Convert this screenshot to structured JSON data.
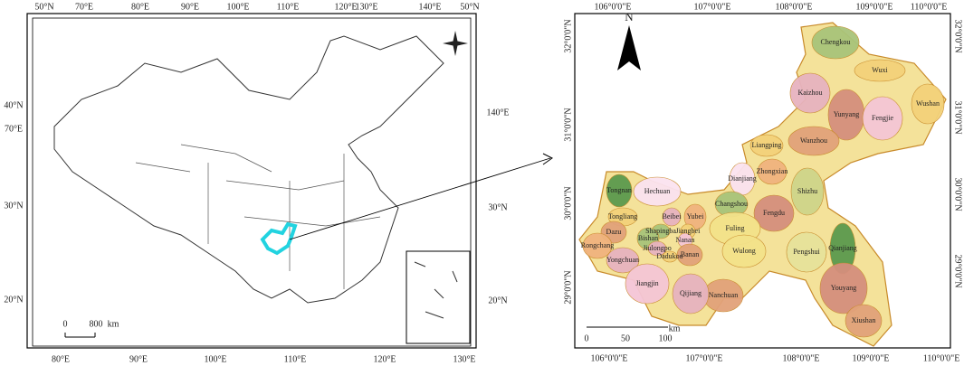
{
  "left_map": {
    "top_ticks": [
      "50°N",
      "70°E",
      "80°E",
      "90°E",
      "100°E",
      "110°E",
      "120°E",
      "130°E",
      "140°E",
      "50°N"
    ],
    "bottom_ticks": [
      "80°E",
      "90°E",
      "100°E",
      "110°E",
      "120°E",
      "130°E"
    ],
    "left_ticks": [
      "40°N",
      "70°E",
      "30°N",
      "20°N"
    ],
    "right_ticks": [
      "140°E",
      "30°N",
      "20°N"
    ],
    "scale": [
      "0",
      "800",
      "km"
    ]
  },
  "right_map": {
    "north": "N",
    "top_ticks": [
      "106°0'0\"E",
      "107°0'0\"E",
      "108°0'0\"E",
      "109°0'0\"E",
      "110°0'0\"E"
    ],
    "bottom_ticks": [
      "106°0'0\"E",
      "107°0'0\"E",
      "108°0'0\"E",
      "109°0'0\"E",
      "110°0'0\"E"
    ],
    "left_ticks": [
      "32°0'0\"N",
      "31°0'0\"N",
      "30°0'0\"N",
      "29°0'0\"N"
    ],
    "right_ticks": [
      "32°0'0\"N",
      "31°0'0\"N",
      "30°0'0\"N",
      "29°0'0\"N"
    ],
    "scale": [
      "0",
      "50",
      "100",
      "km"
    ],
    "districts": [
      {
        "label": "Chengkou",
        "color": "#a9c47a"
      },
      {
        "label": "Wuxi",
        "color": "#f3d27a"
      },
      {
        "label": "Kaizhou",
        "color": "#e7b3bf"
      },
      {
        "label": "Yunyang",
        "color": "#d58f7d"
      },
      {
        "label": "Wushan",
        "color": "#f3d27a"
      },
      {
        "label": "Fengjie",
        "color": "#f5c6d6"
      },
      {
        "label": "Liangping",
        "color": "#f3d27a"
      },
      {
        "label": "Wanzhou",
        "color": "#e2a27a"
      },
      {
        "label": "Zhongxian",
        "color": "#f0b37e"
      },
      {
        "label": "Dianjiang",
        "color": "#fbe3f0"
      },
      {
        "label": "Shizhu",
        "color": "#cfd58a"
      },
      {
        "label": "Tongnan",
        "color": "#5c9a4e"
      },
      {
        "label": "Hechuan",
        "color": "#fbe3f0"
      },
      {
        "label": "Changshou",
        "color": "#a9c47a"
      },
      {
        "label": "Fengdu",
        "color": "#d58f7d"
      },
      {
        "label": "Tongliang",
        "color": "#f3d27a"
      },
      {
        "label": "Beibei",
        "color": "#e7b3bf"
      },
      {
        "label": "Yubei",
        "color": "#f0b37e"
      },
      {
        "label": "Dazu",
        "color": "#e2a27a"
      },
      {
        "label": "Shapingba",
        "color": "#a9c47a"
      },
      {
        "label": "Jiangbei",
        "color": "#f3d27a"
      },
      {
        "label": "Bishan",
        "color": "#a9c47a"
      },
      {
        "label": "Nanan",
        "color": "#f5c6d6"
      },
      {
        "label": "Fuling",
        "color": "#f3e28a"
      },
      {
        "label": "Rongchang",
        "color": "#f0b37e"
      },
      {
        "label": "Jiulongpo",
        "color": "#e7b3bf"
      },
      {
        "label": "Dadukou",
        "color": "#f3d27a"
      },
      {
        "label": "Banan",
        "color": "#e2a27a"
      },
      {
        "label": "Wulong",
        "color": "#f3e28a"
      },
      {
        "label": "Pengshui",
        "color": "#e7e29a"
      },
      {
        "label": "Qianjiang",
        "color": "#5c9a4e"
      },
      {
        "label": "Yongchuan",
        "color": "#e7b3bf"
      },
      {
        "label": "Nanchuan",
        "color": "#e2a27a"
      },
      {
        "label": "Jiangjin",
        "color": "#f5c6d6"
      },
      {
        "label": "Qijiang",
        "color": "#e7b3bf"
      },
      {
        "label": "Youyang",
        "color": "#d58f7d"
      },
      {
        "label": "Xiushan",
        "color": "#e2a27a"
      }
    ]
  }
}
